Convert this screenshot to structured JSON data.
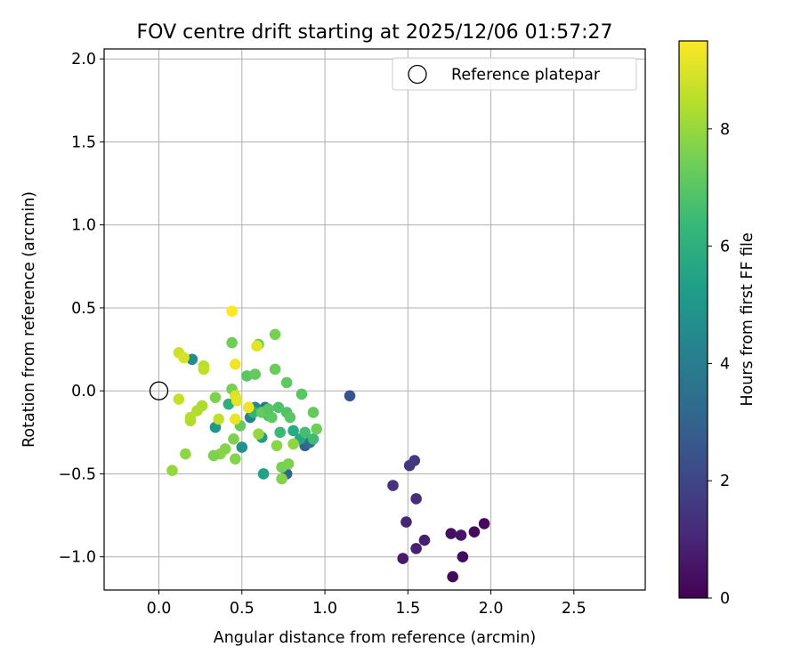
{
  "chart_data": {
    "type": "scatter",
    "title": "FOV centre drift starting at 2025/12/06 01:57:27",
    "xlabel": "Angular distance from reference (arcmin)",
    "ylabel": "Rotation from reference (arcmin)",
    "xlim": [
      -0.33,
      2.93
    ],
    "ylim": [
      -1.2,
      2.06
    ],
    "xticks": [
      0.0,
      0.5,
      1.0,
      1.5,
      2.0,
      2.5
    ],
    "xtick_labels": [
      "0.0",
      "0.5",
      "1.0",
      "1.5",
      "2.0",
      "2.5"
    ],
    "yticks": [
      -1.0,
      -0.5,
      0.0,
      0.5,
      1.0,
      1.5,
      2.0
    ],
    "ytick_labels": [
      "−1.0",
      "−0.5",
      "0.0",
      "0.5",
      "1.0",
      "1.5",
      "2.0"
    ],
    "grid": true,
    "legend": {
      "placement": "top-right",
      "label": "Reference platepar"
    },
    "reference_point": {
      "x": 0.0,
      "y": 0.0
    },
    "colorbar": {
      "label": "Hours from first FF file",
      "range": [
        0,
        9.5
      ],
      "ticks": [
        0,
        2,
        4,
        6,
        8
      ],
      "tick_labels": [
        "0",
        "2",
        "4",
        "6",
        "8"
      ],
      "colormap": [
        "#440154",
        "#482878",
        "#3e4989",
        "#31688e",
        "#26828e",
        "#1f9e89",
        "#35b779",
        "#6ece58",
        "#b5de2b",
        "#fde725"
      ]
    },
    "points": [
      {
        "x": 1.77,
        "y": -1.12,
        "h": 0.2
      },
      {
        "x": 1.47,
        "y": -1.01,
        "h": 0.7
      },
      {
        "x": 1.55,
        "y": -0.95,
        "h": 0.9
      },
      {
        "x": 1.6,
        "y": -0.9,
        "h": 0.8
      },
      {
        "x": 1.83,
        "y": -1.0,
        "h": 0.3
      },
      {
        "x": 1.76,
        "y": -0.86,
        "h": 0.4
      },
      {
        "x": 1.82,
        "y": -0.87,
        "h": 0.5
      },
      {
        "x": 1.9,
        "y": -0.85,
        "h": 0.3
      },
      {
        "x": 1.96,
        "y": -0.8,
        "h": 0.2
      },
      {
        "x": 1.49,
        "y": -0.79,
        "h": 1.0
      },
      {
        "x": 1.55,
        "y": -0.65,
        "h": 1.2
      },
      {
        "x": 1.41,
        "y": -0.57,
        "h": 1.4
      },
      {
        "x": 1.51,
        "y": -0.45,
        "h": 1.5
      },
      {
        "x": 1.54,
        "y": -0.42,
        "h": 1.6
      },
      {
        "x": 1.15,
        "y": -0.03,
        "h": 2.5
      },
      {
        "x": 0.88,
        "y": -0.33,
        "h": 3.0
      },
      {
        "x": 0.91,
        "y": -0.31,
        "h": 3.4
      },
      {
        "x": 0.77,
        "y": -0.5,
        "h": 3.2
      },
      {
        "x": 0.64,
        "y": -0.1,
        "h": 3.8
      },
      {
        "x": 0.55,
        "y": -0.16,
        "h": 4.2
      },
      {
        "x": 0.58,
        "y": -0.1,
        "h": 4.5
      },
      {
        "x": 0.5,
        "y": -0.34,
        "h": 4.8
      },
      {
        "x": 0.34,
        "y": -0.22,
        "h": 5.0
      },
      {
        "x": 0.2,
        "y": 0.19,
        "h": 4.6
      },
      {
        "x": 0.62,
        "y": -0.28,
        "h": 5.2
      },
      {
        "x": 0.63,
        "y": -0.5,
        "h": 5.4
      },
      {
        "x": 0.85,
        "y": -0.29,
        "h": 5.6
      },
      {
        "x": 0.81,
        "y": -0.24,
        "h": 5.8
      },
      {
        "x": 0.42,
        "y": -0.08,
        "h": 6.0
      },
      {
        "x": 0.57,
        "y": -0.13,
        "h": 6.2
      },
      {
        "x": 0.73,
        "y": -0.25,
        "h": 6.4
      },
      {
        "x": 0.88,
        "y": -0.25,
        "h": 6.6
      },
      {
        "x": 0.93,
        "y": -0.29,
        "h": 6.5
      },
      {
        "x": 0.66,
        "y": -0.15,
        "h": 6.7
      },
      {
        "x": 0.72,
        "y": -0.1,
        "h": 6.8
      },
      {
        "x": 0.77,
        "y": -0.13,
        "h": 6.9
      },
      {
        "x": 0.79,
        "y": -0.16,
        "h": 7.0
      },
      {
        "x": 0.68,
        "y": -0.16,
        "h": 7.1
      },
      {
        "x": 0.62,
        "y": -0.13,
        "h": 7.2
      },
      {
        "x": 0.66,
        "y": -0.11,
        "h": 7.0
      },
      {
        "x": 0.49,
        "y": -0.21,
        "h": 7.2
      },
      {
        "x": 0.53,
        "y": 0.09,
        "h": 7.0
      },
      {
        "x": 0.58,
        "y": 0.1,
        "h": 7.2
      },
      {
        "x": 0.7,
        "y": 0.13,
        "h": 7.3
      },
      {
        "x": 0.77,
        "y": 0.05,
        "h": 7.1
      },
      {
        "x": 0.86,
        "y": -0.02,
        "h": 7.0
      },
      {
        "x": 0.93,
        "y": -0.13,
        "h": 7.2
      },
      {
        "x": 0.95,
        "y": -0.23,
        "h": 7.4
      },
      {
        "x": 0.7,
        "y": 0.34,
        "h": 7.5
      },
      {
        "x": 0.6,
        "y": 0.28,
        "h": 7.3
      },
      {
        "x": 0.44,
        "y": 0.29,
        "h": 7.4
      },
      {
        "x": 0.44,
        "y": 0.01,
        "h": 7.5
      },
      {
        "x": 0.34,
        "y": -0.04,
        "h": 7.6
      },
      {
        "x": 0.45,
        "y": -0.29,
        "h": 7.6
      },
      {
        "x": 0.4,
        "y": -0.35,
        "h": 7.7
      },
      {
        "x": 0.37,
        "y": -0.38,
        "h": 7.8
      },
      {
        "x": 0.33,
        "y": -0.39,
        "h": 7.6
      },
      {
        "x": 0.46,
        "y": -0.41,
        "h": 7.7
      },
      {
        "x": 0.74,
        "y": -0.46,
        "h": 7.5
      },
      {
        "x": 0.78,
        "y": -0.44,
        "h": 7.6
      },
      {
        "x": 0.74,
        "y": -0.53,
        "h": 7.7
      },
      {
        "x": 0.71,
        "y": -0.33,
        "h": 7.8
      },
      {
        "x": 0.81,
        "y": -0.32,
        "h": 7.9
      },
      {
        "x": 0.6,
        "y": -0.26,
        "h": 8.0
      },
      {
        "x": 0.16,
        "y": -0.38,
        "h": 7.9
      },
      {
        "x": 0.08,
        "y": -0.48,
        "h": 8.0
      },
      {
        "x": 0.26,
        "y": -0.09,
        "h": 8.3
      },
      {
        "x": 0.23,
        "y": -0.12,
        "h": 8.4
      },
      {
        "x": 0.19,
        "y": -0.16,
        "h": 8.5
      },
      {
        "x": 0.19,
        "y": -0.18,
        "h": 8.4
      },
      {
        "x": 0.36,
        "y": -0.17,
        "h": 8.6
      },
      {
        "x": 0.12,
        "y": -0.05,
        "h": 8.7
      },
      {
        "x": 0.27,
        "y": 0.15,
        "h": 8.5
      },
      {
        "x": 0.27,
        "y": 0.13,
        "h": 8.6
      },
      {
        "x": 0.12,
        "y": 0.23,
        "h": 8.8
      },
      {
        "x": 0.15,
        "y": 0.2,
        "h": 8.9
      },
      {
        "x": 0.46,
        "y": -0.03,
        "h": 9.0
      },
      {
        "x": 0.47,
        "y": -0.06,
        "h": 9.1
      },
      {
        "x": 0.46,
        "y": -0.17,
        "h": 9.2
      },
      {
        "x": 0.54,
        "y": -0.1,
        "h": 9.3
      },
      {
        "x": 0.59,
        "y": 0.27,
        "h": 9.1
      },
      {
        "x": 0.46,
        "y": 0.16,
        "h": 9.3
      },
      {
        "x": 0.44,
        "y": 0.48,
        "h": 9.5
      }
    ]
  }
}
